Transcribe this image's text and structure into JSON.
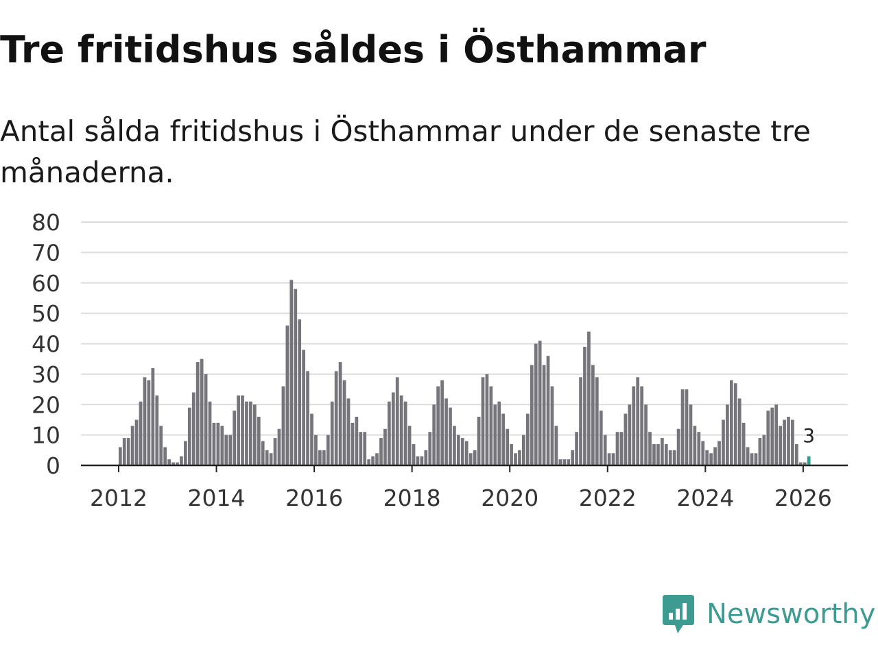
{
  "header": {
    "title": "Tre fritidshus såldes i Östhammar",
    "subtitle": "Antal sålda fritidshus i Östhammar under de senaste tre månaderna."
  },
  "brand": {
    "name": "Newsworthy",
    "icon": "newsworthy-logo-icon",
    "color": "#3e9b92"
  },
  "colors": {
    "bar": "#76757b",
    "highlight": "#2f9c95",
    "grid": "#dddddd",
    "axis": "#222222"
  },
  "chart_data": {
    "type": "bar",
    "title": "Tre fritidshus såldes i Östhammar",
    "subtitle": "Antal sålda fritidshus i Östhammar under de senaste tre månaderna.",
    "xlabel": "",
    "ylabel": "",
    "ylim": [
      0,
      80
    ],
    "yticks": [
      0,
      10,
      20,
      30,
      40,
      50,
      60,
      70,
      80
    ],
    "xticks": [
      "2012",
      "2014",
      "2016",
      "2018",
      "2020",
      "2022",
      "2024",
      "2026"
    ],
    "grid": true,
    "start_month": "2011-04",
    "values": [
      0,
      0,
      0,
      0,
      0,
      0,
      0,
      0,
      0,
      6,
      9,
      9,
      13,
      15,
      21,
      29,
      28,
      32,
      23,
      13,
      6,
      2,
      1,
      1,
      3,
      8,
      19,
      24,
      34,
      35,
      30,
      21,
      14,
      14,
      13,
      10,
      10,
      18,
      23,
      23,
      21,
      21,
      20,
      16,
      8,
      5,
      4,
      9,
      12,
      26,
      46,
      61,
      58,
      48,
      38,
      31,
      17,
      10,
      5,
      5,
      10,
      21,
      31,
      34,
      28,
      22,
      14,
      16,
      11,
      11,
      2,
      3,
      4,
      9,
      12,
      21,
      24,
      29,
      23,
      21,
      13,
      7,
      3,
      3,
      5,
      11,
      20,
      26,
      28,
      22,
      19,
      13,
      10,
      9,
      8,
      4,
      5,
      16,
      29,
      30,
      26,
      20,
      21,
      17,
      12,
      7,
      4,
      5,
      10,
      17,
      33,
      40,
      41,
      33,
      36,
      26,
      13,
      2,
      2,
      2,
      5,
      11,
      29,
      39,
      44,
      33,
      29,
      18,
      10,
      4,
      4,
      11,
      11,
      17,
      20,
      26,
      29,
      26,
      20,
      11,
      7,
      7,
      9,
      7,
      5,
      5,
      12,
      25,
      25,
      20,
      13,
      11,
      8,
      5,
      4,
      6,
      8,
      15,
      20,
      28,
      27,
      22,
      14,
      6,
      4,
      4,
      9,
      10,
      18,
      19,
      20,
      13,
      15,
      16,
      15,
      7,
      1,
      1,
      3
    ],
    "highlight_count": 1,
    "annotation": "3"
  }
}
